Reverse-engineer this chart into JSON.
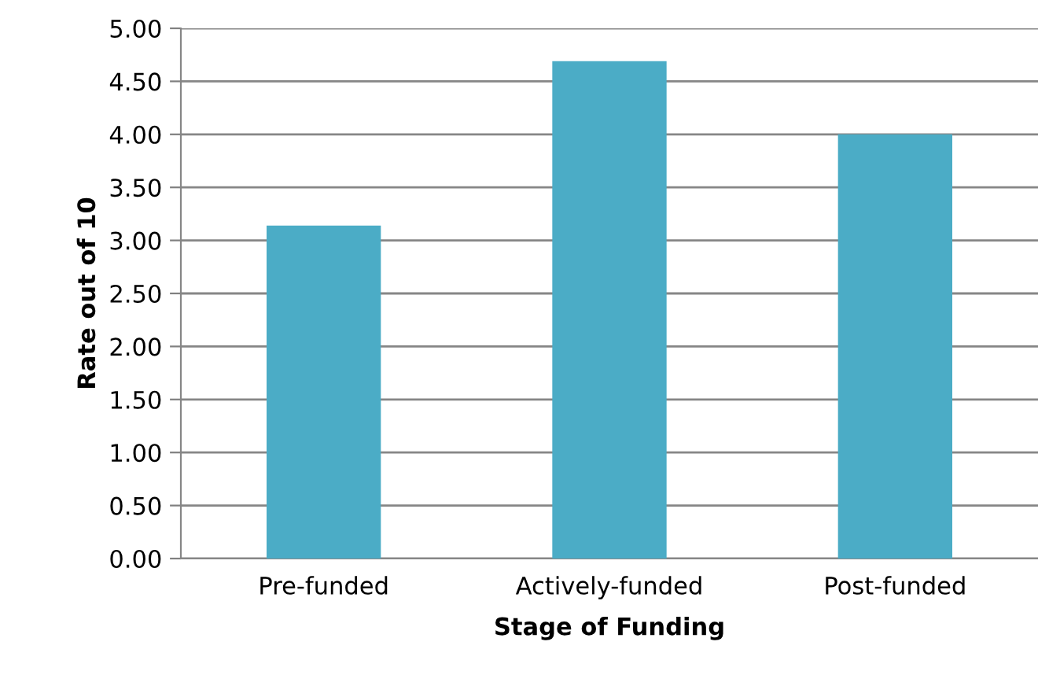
{
  "chart_data": {
    "type": "bar",
    "xlabel": "Stage of Funding",
    "ylabel": "Rate out of 10",
    "categories": [
      "Pre-funded",
      "Actively-funded",
      "Post-funded"
    ],
    "values": [
      3.14,
      4.69,
      4.0
    ],
    "color": "#4bacc6",
    "ylim": [
      0,
      5
    ],
    "yticks": [
      {
        "value": 0,
        "label": "0.00"
      },
      {
        "value": 0.5,
        "label": "0.50"
      },
      {
        "value": 1,
        "label": "1.00"
      },
      {
        "value": 1.5,
        "label": "1.50"
      },
      {
        "value": 2,
        "label": "2.00"
      },
      {
        "value": 2.5,
        "label": "2.50"
      },
      {
        "value": 3,
        "label": "3.00"
      },
      {
        "value": 3.5,
        "label": "3.50"
      },
      {
        "value": 4,
        "label": "4.00"
      },
      {
        "value": 4.5,
        "label": "4.50"
      },
      {
        "value": 5,
        "label": "5.00"
      }
    ],
    "grid": "y",
    "legend": false
  }
}
